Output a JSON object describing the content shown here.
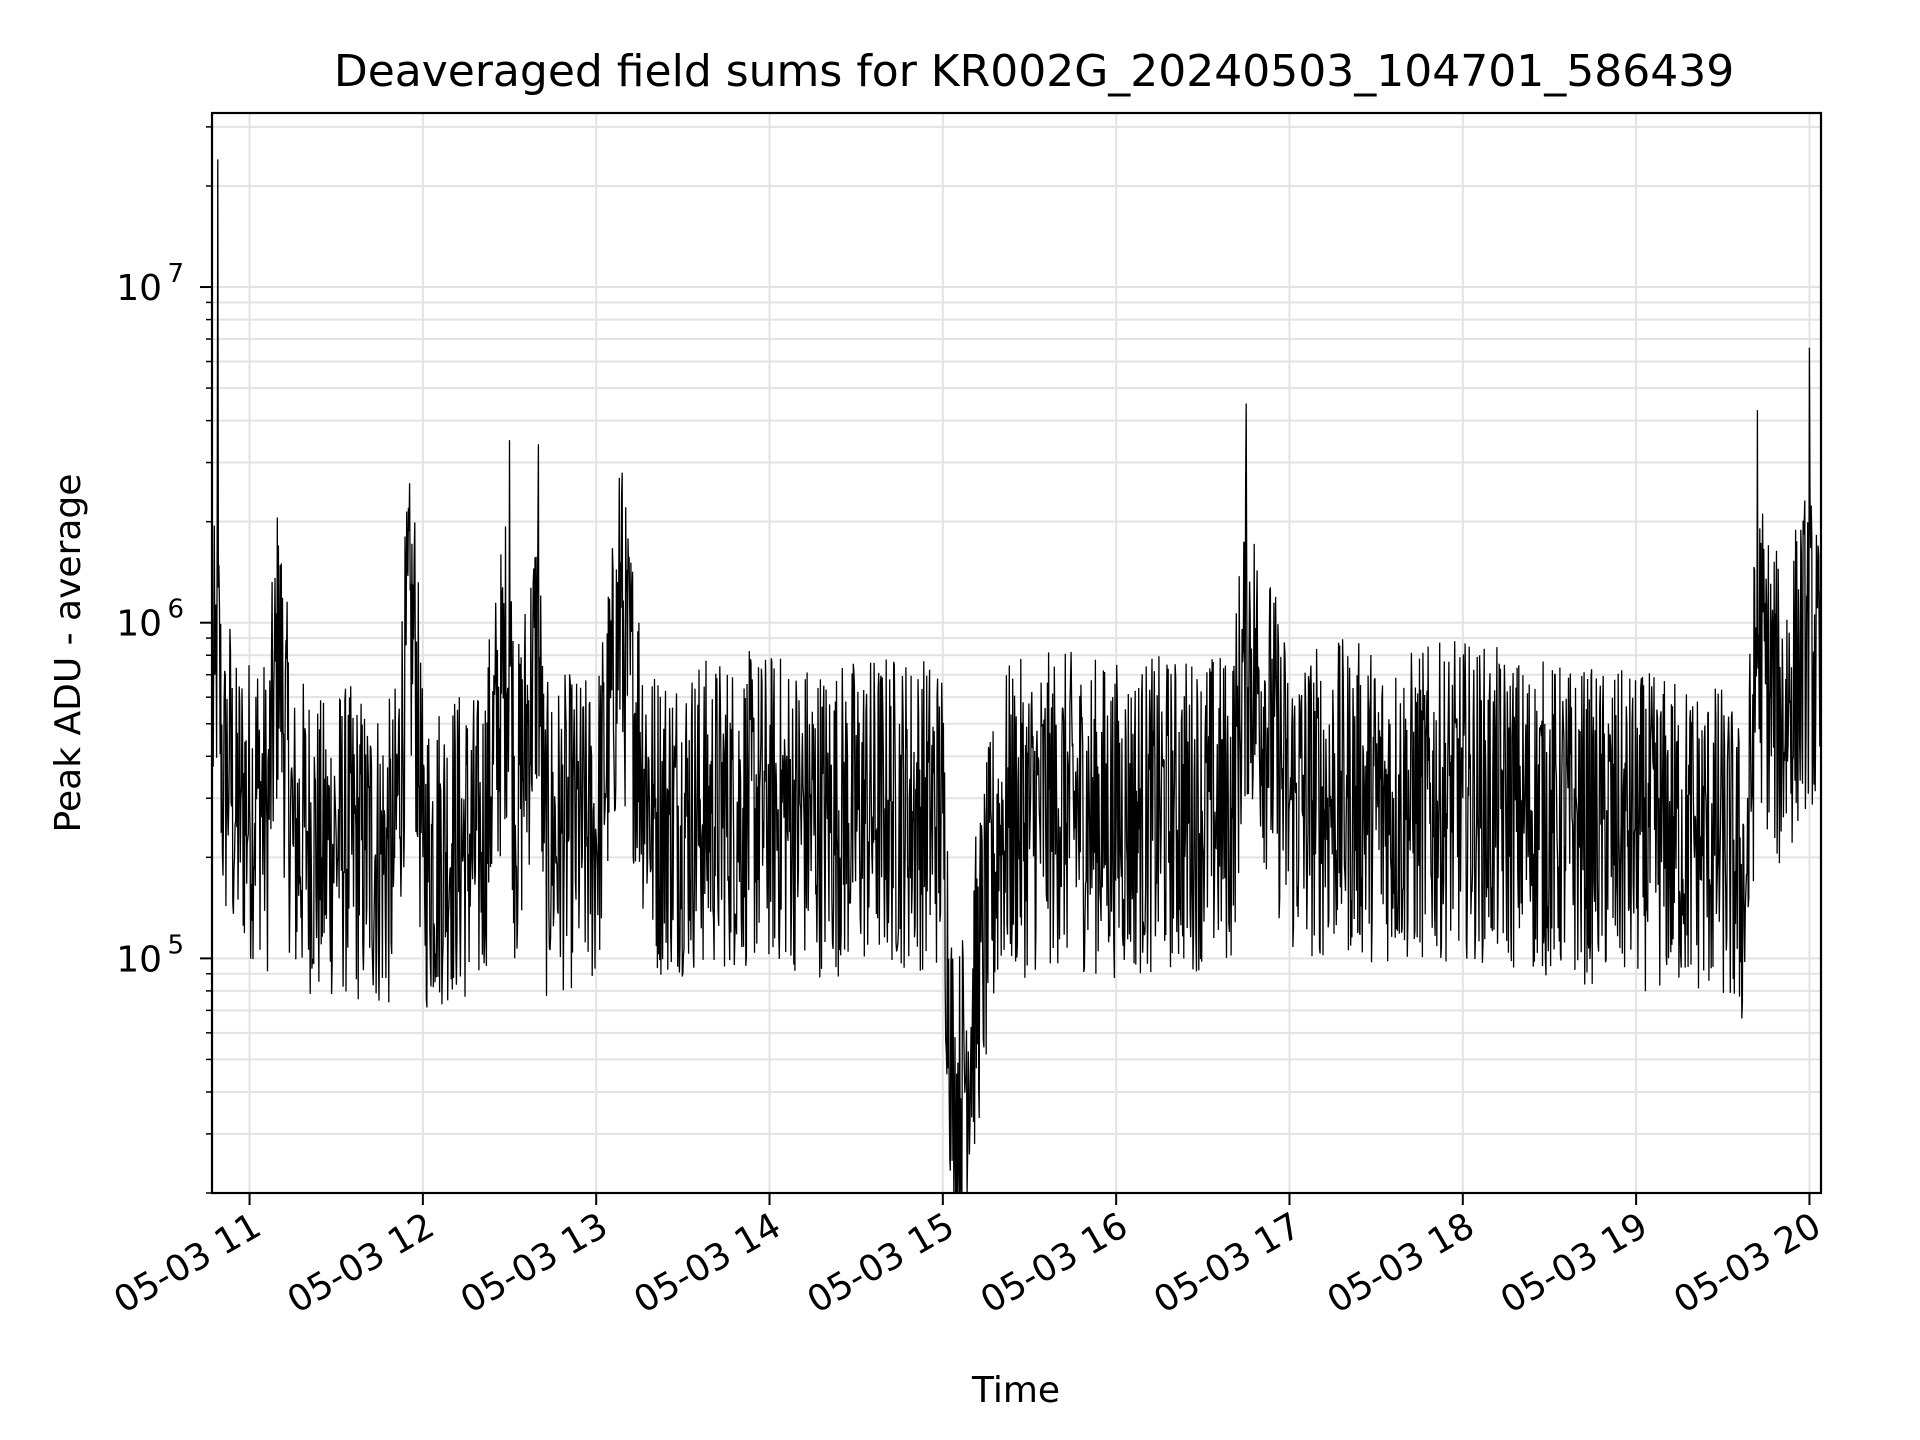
{
  "chart_data": {
    "type": "line",
    "title": "Deaveraged field sums for KR002G_20240503_104701_586439",
    "xlabel": "Time",
    "ylabel": "Peak ADU - average",
    "yscale": "log",
    "ylim": [
      20000,
      33000000
    ],
    "xlim": [
      "2024-05-03 10:47",
      "2024-05-03 20:04"
    ],
    "grid": true,
    "line_color": "#000000",
    "grid_color": "#e3e3e3",
    "x_ticks": [
      {
        "value": "2024-05-03 11:00",
        "label": "05-03 11"
      },
      {
        "value": "2024-05-03 12:00",
        "label": "05-03 12"
      },
      {
        "value": "2024-05-03 13:00",
        "label": "05-03 13"
      },
      {
        "value": "2024-05-03 14:00",
        "label": "05-03 14"
      },
      {
        "value": "2024-05-03 15:00",
        "label": "05-03 15"
      },
      {
        "value": "2024-05-03 16:00",
        "label": "05-03 16"
      },
      {
        "value": "2024-05-03 17:00",
        "label": "05-03 17"
      },
      {
        "value": "2024-05-03 18:00",
        "label": "05-03 18"
      },
      {
        "value": "2024-05-03 19:00",
        "label": "05-03 19"
      },
      {
        "value": "2024-05-03 20:00",
        "label": "05-03 20"
      }
    ],
    "y_ticks": [
      {
        "value": 100000,
        "base": "10",
        "exp": "5"
      },
      {
        "value": 1000000,
        "base": "10",
        "exp": "6"
      },
      {
        "value": 10000000,
        "base": "10",
        "exp": "7"
      }
    ],
    "series": [
      {
        "x": [
          "2024-05-03 10:47",
          "2024-05-03 10:48",
          "2024-05-03 10:49",
          "2024-05-03 10:51",
          "2024-05-03 10:53",
          "2024-05-03 10:55",
          "2024-05-03 10:57",
          "2024-05-03 11:00",
          "2024-05-03 11:03",
          "2024-05-03 11:06",
          "2024-05-03 11:10",
          "2024-05-03 11:15",
          "2024-05-03 11:20",
          "2024-05-03 11:25",
          "2024-05-03 11:30",
          "2024-05-03 11:40",
          "2024-05-03 11:50",
          "2024-05-03 11:55",
          "2024-05-03 11:57",
          "2024-05-03 12:00",
          "2024-05-03 12:10",
          "2024-05-03 12:20",
          "2024-05-03 12:30",
          "2024-05-03 12:32",
          "2024-05-03 12:40",
          "2024-05-03 12:42",
          "2024-05-03 12:50",
          "2024-05-03 13:00",
          "2024-05-03 13:08",
          "2024-05-03 13:09",
          "2024-05-03 13:20",
          "2024-05-03 13:40",
          "2024-05-03 14:00",
          "2024-05-03 14:20",
          "2024-05-03 14:40",
          "2024-05-03 15:00",
          "2024-05-03 15:04",
          "2024-05-03 15:20",
          "2024-05-03 15:40",
          "2024-05-03 16:00",
          "2024-05-03 16:20",
          "2024-05-03 16:40",
          "2024-05-03 16:45",
          "2024-05-03 17:00",
          "2024-05-03 17:20",
          "2024-05-03 17:40",
          "2024-05-03 18:00",
          "2024-05-03 18:20",
          "2024-05-03 18:40",
          "2024-05-03 19:00",
          "2024-05-03 19:20",
          "2024-05-03 19:30",
          "2024-05-03 19:38",
          "2024-05-03 19:42",
          "2024-05-03 19:50",
          "2024-05-03 20:00",
          "2024-05-03 20:04"
        ],
        "y": [
          500000,
          700000,
          24000000,
          300000,
          400000,
          250000,
          300000,
          280000,
          320000,
          250000,
          1700000,
          220000,
          240000,
          200000,
          230000,
          210000,
          200000,
          2200000,
          1600000,
          200000,
          220000,
          210000,
          3500000,
          250000,
          3400000,
          220000,
          240000,
          230000,
          2700000,
          2800000,
          260000,
          270000,
          280000,
          260000,
          280000,
          270000,
          30000,
          250000,
          280000,
          260000,
          270000,
          280000,
          4500000,
          290000,
          300000,
          280000,
          300000,
          270000,
          250000,
          240000,
          230000,
          220000,
          160000,
          4300000,
          500000,
          6600000,
          550000
        ]
      }
    ]
  }
}
